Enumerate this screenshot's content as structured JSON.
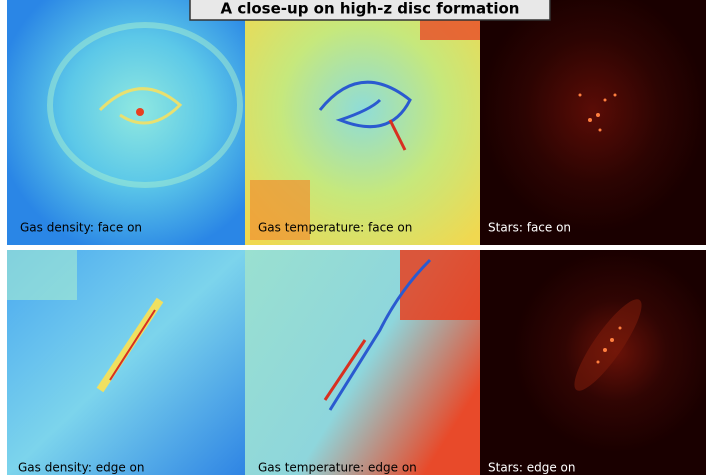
{
  "title": "A close-up on high-z disc formation",
  "panels": [
    {
      "label": "Gas density: face on"
    },
    {
      "label": "Gas temperature: face on"
    },
    {
      "label": "Stars: face on"
    },
    {
      "label": "Gas density: edge on"
    },
    {
      "label": "Gas temperature: edge on"
    },
    {
      "label": "Stars: edge on"
    }
  ]
}
